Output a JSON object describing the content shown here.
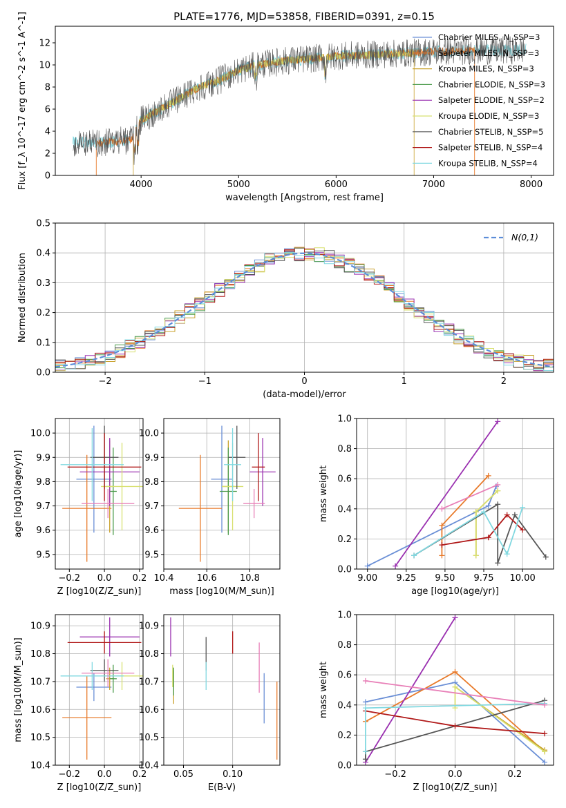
{
  "figure": {
    "title": "PLATE=1776, MJD=53858, FIBERID=0391, z=0.15"
  },
  "colors": {
    "chabrier_miles": "#6a8fd6",
    "salpeter_miles": "#e87a2a",
    "kroupa_miles": "#c8a02a",
    "chabrier_elodie": "#4a9a4a",
    "salpeter_elodie": "#9a30b0",
    "kroupa_elodie": "#d8e070",
    "chabrier_stelib": "#555555",
    "salpeter_stelib": "#b01818",
    "kroupa_stelib": "#80d8e0",
    "normal": "#5b8dd8",
    "pink": "#e880b8"
  },
  "chart_data": [
    {
      "id": "spectrum",
      "type": "line",
      "xlabel": "wavelength [Angstrom, rest frame]",
      "ylabel": "Flux [f_λ 10^-17 erg cm^-2 s^-1 A^-1]",
      "xlim": [
        3120,
        8230
      ],
      "ylim": [
        0,
        13.5
      ],
      "xticks": [
        4000,
        5000,
        6000,
        7000,
        8000
      ],
      "yticks": [
        0,
        2,
        4,
        6,
        8,
        10,
        12
      ],
      "legend": [
        {
          "label": "Chabrier MILES, N_SSP=3",
          "color_key": "chabrier_miles"
        },
        {
          "label": "Salpeter MILES, N_SSP=3",
          "color_key": "salpeter_miles"
        },
        {
          "label": "Kroupa MILES, N_SSP=3",
          "color_key": "kroupa_miles"
        },
        {
          "label": "Chabrier ELODIE, N_SSP=3",
          "color_key": "chabrier_elodie"
        },
        {
          "label": "Salpeter ELODIE, N_SSP=2",
          "color_key": "salpeter_elodie"
        },
        {
          "label": "Kroupa ELODIE, N_SSP=3",
          "color_key": "kroupa_elodie"
        },
        {
          "label": "Chabrier STELIB, N_SSP=5",
          "color_key": "chabrier_stelib"
        },
        {
          "label": "Salpeter STELIB, N_SSP=4",
          "color_key": "salpeter_stelib"
        },
        {
          "label": "Kroupa STELIB, N_SSP=4",
          "color_key": "kroupa_stelib"
        }
      ],
      "continuum": [
        [
          3300,
          3.0
        ],
        [
          3500,
          2.9
        ],
        [
          3900,
          3.2
        ],
        [
          4000,
          5.0
        ],
        [
          4200,
          6.0
        ],
        [
          4400,
          7.0
        ],
        [
          4600,
          8.0
        ],
        [
          4800,
          8.6
        ],
        [
          5000,
          9.5
        ],
        [
          5200,
          10.0
        ],
        [
          5500,
          10.4
        ],
        [
          5800,
          10.6
        ],
        [
          6000,
          10.8
        ],
        [
          6300,
          10.9
        ],
        [
          6600,
          11.0
        ],
        [
          7000,
          11.2
        ],
        [
          7400,
          11.3
        ],
        [
          7700,
          11.3
        ],
        [
          7950,
          11.4
        ]
      ],
      "model_ranges": {
        "kroupa_stelib": [
          3300,
          7950
        ],
        "salpeter_miles": [
          3540,
          7420
        ],
        "kroupa_miles": [
          3920,
          6800
        ]
      }
    },
    {
      "id": "residuals",
      "type": "step",
      "xlabel": "(data-model)/error",
      "ylabel": "Normed distribution",
      "xlim": [
        -2.5,
        2.5
      ],
      "ylim": [
        0,
        0.5
      ],
      "xticks": [
        -2,
        -1,
        0,
        1,
        2
      ],
      "yticks": [
        0.0,
        0.1,
        0.2,
        0.3,
        0.4,
        0.5
      ],
      "legend": [
        {
          "label": "N(0,1)",
          "color_key": "normal",
          "style": "dashed"
        }
      ],
      "bin_width": 0.1
    },
    {
      "id": "age_vs_Z",
      "type": "errorbar",
      "xlabel": "Z [log10(Z/Z_sun)]",
      "ylabel": "age [log10(age/yr)]",
      "xlim": [
        -0.28,
        0.22
      ],
      "ylim": [
        9.44,
        10.06
      ],
      "xticks": [
        -0.2,
        0.0,
        0.2
      ],
      "yticks": [
        9.5,
        9.6,
        9.7,
        9.8,
        9.9,
        10.0
      ],
      "points": [
        {
          "c": "chabrier_miles",
          "x": -0.06,
          "xerr": 0.1,
          "y": 9.81,
          "yerr": 0.22
        },
        {
          "c": "salpeter_miles",
          "x": -0.1,
          "xerr": 0.14,
          "y": 9.69,
          "yerr": 0.22
        },
        {
          "c": "kroupa_miles",
          "x": 0.03,
          "xerr": 0.02,
          "y": 9.78,
          "yerr": 0.19
        },
        {
          "c": "chabrier_elodie",
          "x": 0.05,
          "xerr": 0.02,
          "y": 9.76,
          "yerr": 0.18
        },
        {
          "c": "salpeter_elodie",
          "x": 0.03,
          "xerr": 0.17,
          "y": 9.84,
          "yerr": 0.14
        },
        {
          "c": "kroupa_elodie",
          "x": 0.1,
          "xerr": 0.12,
          "y": 9.78,
          "yerr": 0.18
        },
        {
          "c": "chabrier_stelib",
          "x": 0.0,
          "xerr": 0.08,
          "y": 9.9,
          "yerr": 0.13
        },
        {
          "c": "salpeter_stelib",
          "x": 0.0,
          "xerr": 0.21,
          "y": 9.86,
          "yerr": 0.14
        },
        {
          "c": "kroupa_stelib",
          "x": -0.07,
          "xerr": 0.18,
          "y": 9.87,
          "yerr": 0.15
        },
        {
          "c": "pink",
          "x": 0.02,
          "xerr": 0.15,
          "y": 9.71,
          "yerr": 0.06
        }
      ]
    },
    {
      "id": "age_vs_mass",
      "type": "errorbar",
      "xlabel": "mass [log10(M/M_sun)]",
      "ylabel": "",
      "xlim": [
        10.4,
        10.94
      ],
      "ylim": [
        9.44,
        10.06
      ],
      "xticks": [
        10.4,
        10.6,
        10.8
      ],
      "yticks": [
        9.5,
        9.6,
        9.7,
        9.8,
        9.9,
        10.0
      ],
      "points": [
        {
          "c": "chabrier_miles",
          "x": 10.67,
          "xerr": 0.05,
          "y": 9.81,
          "yerr": 0.22
        },
        {
          "c": "salpeter_miles",
          "x": 10.57,
          "xerr": 0.1,
          "y": 9.69,
          "yerr": 0.22
        },
        {
          "c": "kroupa_miles",
          "x": 10.7,
          "xerr": 0.03,
          "y": 9.78,
          "yerr": 0.19
        },
        {
          "c": "chabrier_elodie",
          "x": 10.7,
          "xerr": 0.04,
          "y": 9.76,
          "yerr": 0.18
        },
        {
          "c": "salpeter_elodie",
          "x": 10.86,
          "xerr": 0.06,
          "y": 9.84,
          "yerr": 0.14
        },
        {
          "c": "kroupa_elodie",
          "x": 10.72,
          "xerr": 0.05,
          "y": 9.78,
          "yerr": 0.18
        },
        {
          "c": "chabrier_stelib",
          "x": 10.74,
          "xerr": 0.04,
          "y": 9.9,
          "yerr": 0.13
        },
        {
          "c": "salpeter_stelib",
          "x": 10.84,
          "xerr": 0.03,
          "y": 9.86,
          "yerr": 0.14
        },
        {
          "c": "kroupa_stelib",
          "x": 10.72,
          "xerr": 0.04,
          "y": 9.87,
          "yerr": 0.15
        },
        {
          "c": "pink",
          "x": 10.82,
          "xerr": 0.05,
          "y": 9.71,
          "yerr": 0.06
        }
      ]
    },
    {
      "id": "weight_vs_age",
      "type": "line",
      "xlabel": "age [log10(age/yr)]",
      "ylabel": "mass weight",
      "xlim": [
        8.93,
        10.2
      ],
      "ylim": [
        0,
        1.0
      ],
      "xticks": [
        9.0,
        9.25,
        9.5,
        9.75,
        10.0
      ],
      "yticks": [
        0.0,
        0.2,
        0.4,
        0.6,
        0.8,
        1.0
      ],
      "series": [
        {
          "c": "chabrier_miles",
          "points": [
            [
              9.0,
              0.02
            ],
            [
              9.78,
              0.42
            ],
            [
              9.83,
              0.55
            ]
          ]
        },
        {
          "c": "salpeter_miles",
          "points": [
            [
              9.48,
              0.09
            ],
            [
              9.48,
              0.29
            ],
            [
              9.78,
              0.62
            ]
          ]
        },
        {
          "c": "kroupa_miles",
          "points": [
            [
              9.7,
              0.09
            ],
            [
              9.7,
              0.38
            ],
            [
              9.84,
              0.52
            ]
          ]
        },
        {
          "c": "salpeter_elodie",
          "points": [
            [
              9.18,
              0.02
            ],
            [
              9.84,
              0.98
            ]
          ]
        },
        {
          "c": "kroupa_elodie",
          "points": [
            [
              9.7,
              0.09
            ],
            [
              9.7,
              0.38
            ],
            [
              9.84,
              0.52
            ]
          ]
        },
        {
          "c": "chabrier_stelib",
          "points": [
            [
              9.3,
              0.09
            ],
            [
              9.84,
              0.43
            ],
            [
              9.84,
              0.04
            ],
            [
              9.95,
              0.36
            ],
            [
              10.15,
              0.08
            ]
          ]
        },
        {
          "c": "salpeter_stelib",
          "points": [
            [
              9.48,
              0.16
            ],
            [
              9.78,
              0.21
            ],
            [
              9.9,
              0.36
            ],
            [
              10.0,
              0.26
            ]
          ]
        },
        {
          "c": "kroupa_stelib",
          "points": [
            [
              9.3,
              0.09
            ],
            [
              9.75,
              0.38
            ],
            [
              9.9,
              0.1
            ],
            [
              10.0,
              0.41
            ]
          ]
        },
        {
          "c": "pink",
          "points": [
            [
              9.48,
              0.4
            ],
            [
              9.84,
              0.56
            ]
          ]
        }
      ]
    },
    {
      "id": "mass_vs_Z",
      "type": "errorbar",
      "xlabel": "Z [log10(Z/Z_sun)]",
      "ylabel": "mass [log10(M/M_sun)]",
      "xlim": [
        -0.28,
        0.22
      ],
      "ylim": [
        10.4,
        10.94
      ],
      "xticks": [
        -0.2,
        0.0,
        0.2
      ],
      "yticks": [
        10.4,
        10.5,
        10.6,
        10.7,
        10.8,
        10.9
      ],
      "points": [
        {
          "c": "chabrier_miles",
          "x": -0.06,
          "xerr": 0.1,
          "y": 10.68,
          "yerr": 0.05
        },
        {
          "c": "salpeter_miles",
          "x": -0.1,
          "xerr": 0.14,
          "y": 10.57,
          "yerr": 0.15
        },
        {
          "c": "kroupa_miles",
          "x": 0.03,
          "xerr": 0.02,
          "y": 10.71,
          "yerr": 0.04
        },
        {
          "c": "chabrier_elodie",
          "x": 0.05,
          "xerr": 0.02,
          "y": 10.71,
          "yerr": 0.05
        },
        {
          "c": "salpeter_elodie",
          "x": 0.03,
          "xerr": 0.17,
          "y": 10.86,
          "yerr": 0.07
        },
        {
          "c": "kroupa_elodie",
          "x": 0.1,
          "xerr": 0.12,
          "y": 10.72,
          "yerr": 0.05
        },
        {
          "c": "chabrier_stelib",
          "x": 0.0,
          "xerr": 0.08,
          "y": 10.74,
          "yerr": 0.04
        },
        {
          "c": "salpeter_stelib",
          "x": 0.0,
          "xerr": 0.21,
          "y": 10.84,
          "yerr": 0.04
        },
        {
          "c": "kroupa_stelib",
          "x": -0.07,
          "xerr": 0.18,
          "y": 10.72,
          "yerr": 0.05
        },
        {
          "c": "pink",
          "x": 0.02,
          "xerr": 0.15,
          "y": 10.73,
          "yerr": 0.05
        }
      ]
    },
    {
      "id": "mass_vs_ebv",
      "type": "errorbar",
      "xlabel": "E(B-V)",
      "ylabel": "",
      "xlim": [
        0.03,
        0.148
      ],
      "ylim": [
        10.4,
        10.94
      ],
      "xticks": [
        0.05,
        0.1
      ],
      "yticks": [
        10.4,
        10.5,
        10.6,
        10.7,
        10.8,
        10.9
      ],
      "points": [
        {
          "c": "chabrier_miles",
          "x": 0.132,
          "y": 10.64,
          "yerr": 0.09
        },
        {
          "c": "salpeter_miles",
          "x": 0.145,
          "y": 10.56,
          "yerr": 0.14
        },
        {
          "c": "kroupa_miles",
          "x": 0.04,
          "y": 10.68,
          "yerr": 0.06
        },
        {
          "c": "chabrier_elodie",
          "x": 0.04,
          "y": 10.7,
          "yerr": 0.05
        },
        {
          "c": "salpeter_elodie",
          "x": 0.037,
          "y": 10.86,
          "yerr": 0.07
        },
        {
          "c": "kroupa_elodie",
          "x": 0.039,
          "y": 10.72,
          "yerr": 0.04
        },
        {
          "c": "chabrier_stelib",
          "x": 0.073,
          "y": 10.8,
          "yerr": 0.06
        },
        {
          "c": "salpeter_stelib",
          "x": 0.1,
          "y": 10.84,
          "yerr": 0.04
        },
        {
          "c": "kroupa_stelib",
          "x": 0.073,
          "y": 10.72,
          "yerr": 0.05
        },
        {
          "c": "pink",
          "x": 0.127,
          "y": 10.75,
          "yerr": 0.09
        }
      ]
    },
    {
      "id": "weight_vs_Z",
      "type": "line",
      "xlabel": "Z [log10(Z/Z_sun)]",
      "ylabel": "mass weight",
      "xlim": [
        -0.33,
        0.33
      ],
      "ylim": [
        0,
        1.0
      ],
      "xticks": [
        -0.2,
        0.0,
        0.2
      ],
      "yticks": [
        0.0,
        0.2,
        0.4,
        0.6,
        0.8,
        1.0
      ],
      "series": [
        {
          "c": "chabrier_miles",
          "points": [
            [
              -0.3,
              0.42
            ],
            [
              0.0,
              0.55
            ],
            [
              0.3,
              0.02
            ]
          ]
        },
        {
          "c": "salpeter_miles",
          "points": [
            [
              -0.3,
              0.29
            ],
            [
              0.0,
              0.62
            ],
            [
              0.3,
              0.09
            ]
          ]
        },
        {
          "c": "kroupa_miles",
          "points": [
            [
              0.0,
              0.52
            ],
            [
              0.3,
              0.1
            ]
          ]
        },
        {
          "c": "salpeter_elodie",
          "points": [
            [
              -0.3,
              0.02
            ],
            [
              0.0,
              0.98
            ]
          ]
        },
        {
          "c": "kroupa_elodie",
          "points": [
            [
              0.0,
              0.38
            ],
            [
              0.0,
              0.52
            ],
            [
              0.3,
              0.09
            ]
          ]
        },
        {
          "c": "chabrier_stelib",
          "points": [
            [
              -0.3,
              0.04
            ],
            [
              -0.3,
              0.09
            ],
            [
              0.3,
              0.43
            ]
          ]
        },
        {
          "c": "salpeter_stelib",
          "points": [
            [
              -0.3,
              0.36
            ],
            [
              0.0,
              0.26
            ],
            [
              0.3,
              0.21
            ]
          ]
        },
        {
          "c": "kroupa_stelib",
          "points": [
            [
              -0.3,
              0.09
            ],
            [
              -0.3,
              0.38
            ],
            [
              0.3,
              0.41
            ]
          ]
        },
        {
          "c": "pink",
          "points": [
            [
              -0.3,
              0.56
            ],
            [
              0.3,
              0.4
            ]
          ]
        }
      ]
    }
  ]
}
